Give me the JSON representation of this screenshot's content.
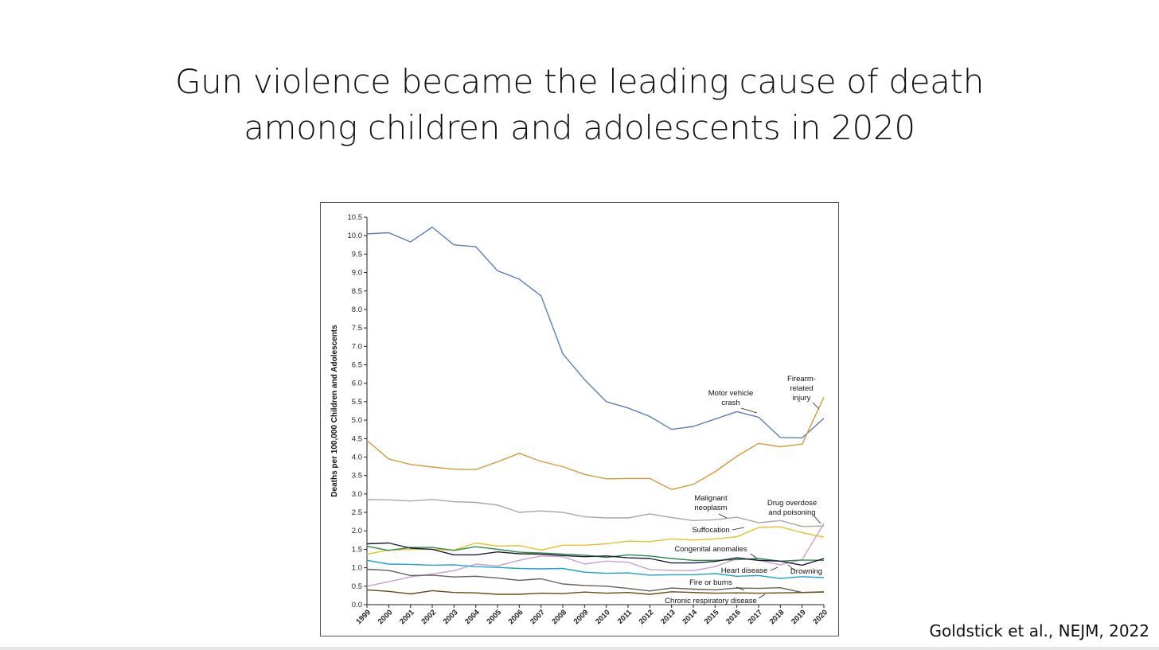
{
  "slide": {
    "title_line1": "Gun violence became the leading cause of death",
    "title_line2": "among children and adolescents in 2020",
    "citation": "Goldstick et al., NEJM, 2022"
  },
  "chart_data": {
    "type": "line",
    "title": "",
    "xlabel": "",
    "ylabel": "Deaths per 100,000 Children and Adolescents",
    "ylim": [
      0,
      10.5
    ],
    "y_ticks": [
      "0.0",
      "0.5",
      "1.0",
      "1.5",
      "2.0",
      "2.5",
      "3.0",
      "3.5",
      "4.0",
      "4.5",
      "5.0",
      "5.5",
      "6.0",
      "6.5",
      "7.0",
      "7.5",
      "8.0",
      "8.5",
      "9.0",
      "9.5",
      "10.0",
      "10.5"
    ],
    "x": [
      "1999",
      "2000",
      "2001",
      "2002",
      "2003",
      "2004",
      "2005",
      "2006",
      "2007",
      "2008",
      "2009",
      "2010",
      "2011",
      "2012",
      "2013",
      "2014",
      "2015",
      "2016",
      "2017",
      "2018",
      "2019",
      "2020"
    ],
    "grid": false,
    "legend": "none (series labeled directly on plot)",
    "series": [
      {
        "name": "Motor vehicle crash",
        "color": "#5b7fb8",
        "values": [
          10.05,
          10.08,
          9.83,
          10.23,
          9.75,
          9.7,
          9.05,
          8.82,
          8.37,
          6.8,
          6.1,
          5.5,
          5.33,
          5.1,
          4.75,
          4.83,
          5.03,
          5.23,
          5.08,
          4.53,
          4.52,
          5.05
        ]
      },
      {
        "name": "Firearm-related injury",
        "color": "#d49a3c",
        "values": [
          4.45,
          3.95,
          3.8,
          3.73,
          3.67,
          3.66,
          3.87,
          4.1,
          3.88,
          3.74,
          3.53,
          3.41,
          3.42,
          3.42,
          3.12,
          3.26,
          3.6,
          4.02,
          4.37,
          4.28,
          4.35,
          5.62
        ]
      },
      {
        "name": "Malignant neoplasm",
        "color": "#a8a8a8",
        "values": [
          2.85,
          2.84,
          2.81,
          2.85,
          2.79,
          2.77,
          2.7,
          2.5,
          2.54,
          2.5,
          2.38,
          2.35,
          2.35,
          2.46,
          2.36,
          2.28,
          2.3,
          2.37,
          2.22,
          2.28,
          2.12,
          2.13
        ]
      },
      {
        "name": "Drug overdose and poisoning",
        "color": "#c8a0cc",
        "values": [
          0.5,
          0.62,
          0.75,
          0.83,
          0.92,
          1.1,
          1.05,
          1.2,
          1.32,
          1.3,
          1.1,
          1.18,
          1.15,
          0.95,
          0.93,
          0.92,
          1.03,
          1.25,
          1.2,
          1.08,
          1.22,
          2.2
        ]
      },
      {
        "name": "Suffocation",
        "color": "#e8c12a",
        "values": [
          1.37,
          1.48,
          1.5,
          1.5,
          1.48,
          1.67,
          1.59,
          1.6,
          1.48,
          1.61,
          1.61,
          1.65,
          1.72,
          1.71,
          1.78,
          1.75,
          1.78,
          1.84,
          2.09,
          2.11,
          1.95,
          1.83
        ]
      },
      {
        "name": "Congenital anomalies",
        "color": "#2e8a4a",
        "values": [
          1.58,
          1.47,
          1.55,
          1.55,
          1.47,
          1.57,
          1.5,
          1.42,
          1.4,
          1.37,
          1.34,
          1.28,
          1.35,
          1.32,
          1.25,
          1.2,
          1.2,
          1.22,
          1.25,
          1.18,
          1.21,
          1.2
        ]
      },
      {
        "name": "Heart disease",
        "color": "#1e1e3c",
        "values": [
          1.65,
          1.67,
          1.53,
          1.5,
          1.35,
          1.35,
          1.43,
          1.38,
          1.37,
          1.33,
          1.3,
          1.32,
          1.27,
          1.25,
          1.13,
          1.13,
          1.17,
          1.27,
          1.2,
          1.18,
          1.07,
          1.25
        ]
      },
      {
        "name": "Drowning",
        "color": "#1aa2c8",
        "values": [
          1.2,
          1.1,
          1.09,
          1.07,
          1.08,
          1.03,
          1.01,
          0.98,
          0.97,
          0.98,
          0.88,
          0.85,
          0.86,
          0.8,
          0.81,
          0.81,
          0.84,
          0.77,
          0.79,
          0.71,
          0.76,
          0.73
        ]
      },
      {
        "name": "Fire or burns",
        "color": "#606060",
        "values": [
          0.96,
          0.93,
          0.79,
          0.8,
          0.75,
          0.77,
          0.72,
          0.66,
          0.7,
          0.56,
          0.52,
          0.5,
          0.44,
          0.37,
          0.45,
          0.42,
          0.4,
          0.45,
          0.44,
          0.46,
          0.33,
          0.35
        ]
      },
      {
        "name": "Chronic respiratory disease",
        "color": "#6b4a14",
        "values": [
          0.4,
          0.36,
          0.29,
          0.38,
          0.33,
          0.32,
          0.28,
          0.28,
          0.31,
          0.3,
          0.34,
          0.31,
          0.33,
          0.28,
          0.35,
          0.33,
          0.31,
          0.32,
          0.31,
          0.32,
          0.33,
          0.34
        ]
      }
    ],
    "annotations": [
      {
        "series": "Motor vehicle crash",
        "lines": [
          "Motor vehicle",
          "crash"
        ]
      },
      {
        "series": "Firearm-related injury",
        "lines": [
          "Firearm-",
          "related",
          "injury"
        ]
      },
      {
        "series": "Malignant neoplasm",
        "lines": [
          "Malignant",
          "neoplasm"
        ]
      },
      {
        "series": "Drug overdose and poisoning",
        "lines": [
          "Drug overdose",
          "and poisoning"
        ]
      },
      {
        "series": "Suffocation",
        "lines": [
          "Suffocation"
        ]
      },
      {
        "series": "Congenital anomalies",
        "lines": [
          "Congenital anomalies"
        ]
      },
      {
        "series": "Heart disease",
        "lines": [
          "Heart disease"
        ]
      },
      {
        "series": "Drowning",
        "lines": [
          "Drowning"
        ]
      },
      {
        "series": "Fire or burns",
        "lines": [
          "Fire or burns"
        ]
      },
      {
        "series": "Chronic respiratory disease",
        "lines": [
          "Chronic respiratory disease"
        ]
      }
    ]
  }
}
